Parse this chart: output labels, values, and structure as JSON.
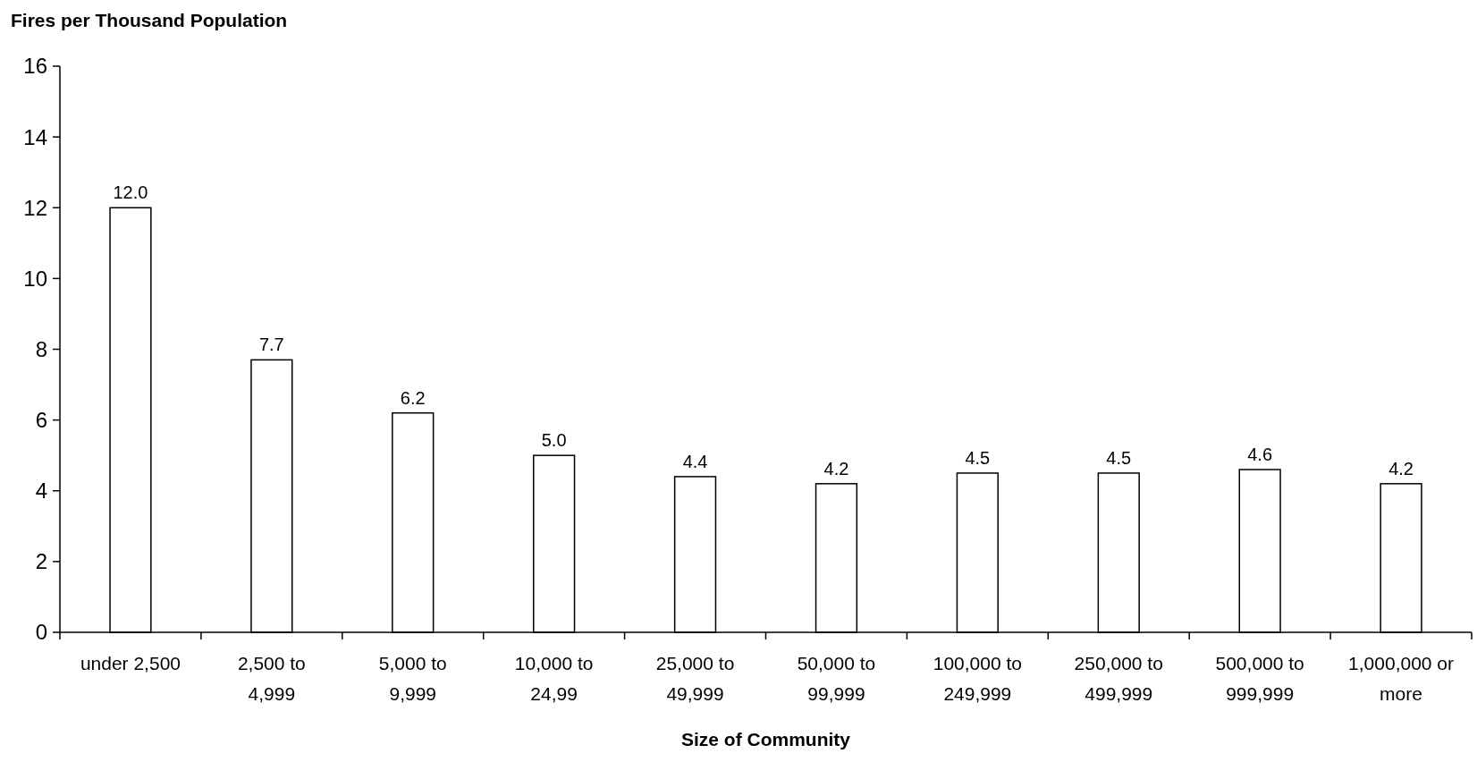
{
  "chart_data": {
    "type": "bar",
    "ylabel": "Fires per Thousand Population",
    "xlabel": "Size of Community",
    "categories": [
      "under 2,500",
      "2,500 to\n4,999",
      "5,000 to\n9,999",
      "10,000 to\n24,99",
      "25,000 to\n49,999",
      "50,000 to\n99,999",
      "100,000 to\n249,999",
      "250,000 to\n499,999",
      "500,000 to\n999,999",
      "1,000,000 or\nmore"
    ],
    "values": [
      12.0,
      7.7,
      6.2,
      5.0,
      4.4,
      4.2,
      4.5,
      4.5,
      4.6,
      4.2
    ],
    "value_labels": [
      "12.0",
      "7.7",
      "6.2",
      "5.0",
      "4.4",
      "4.2",
      "4.5",
      "4.5",
      "4.6",
      "4.2"
    ],
    "color": "#ffffff",
    "ylim": [
      0,
      16
    ],
    "yticks": [
      0,
      2,
      4,
      6,
      8,
      10,
      12,
      14,
      16
    ],
    "grid": false
  }
}
